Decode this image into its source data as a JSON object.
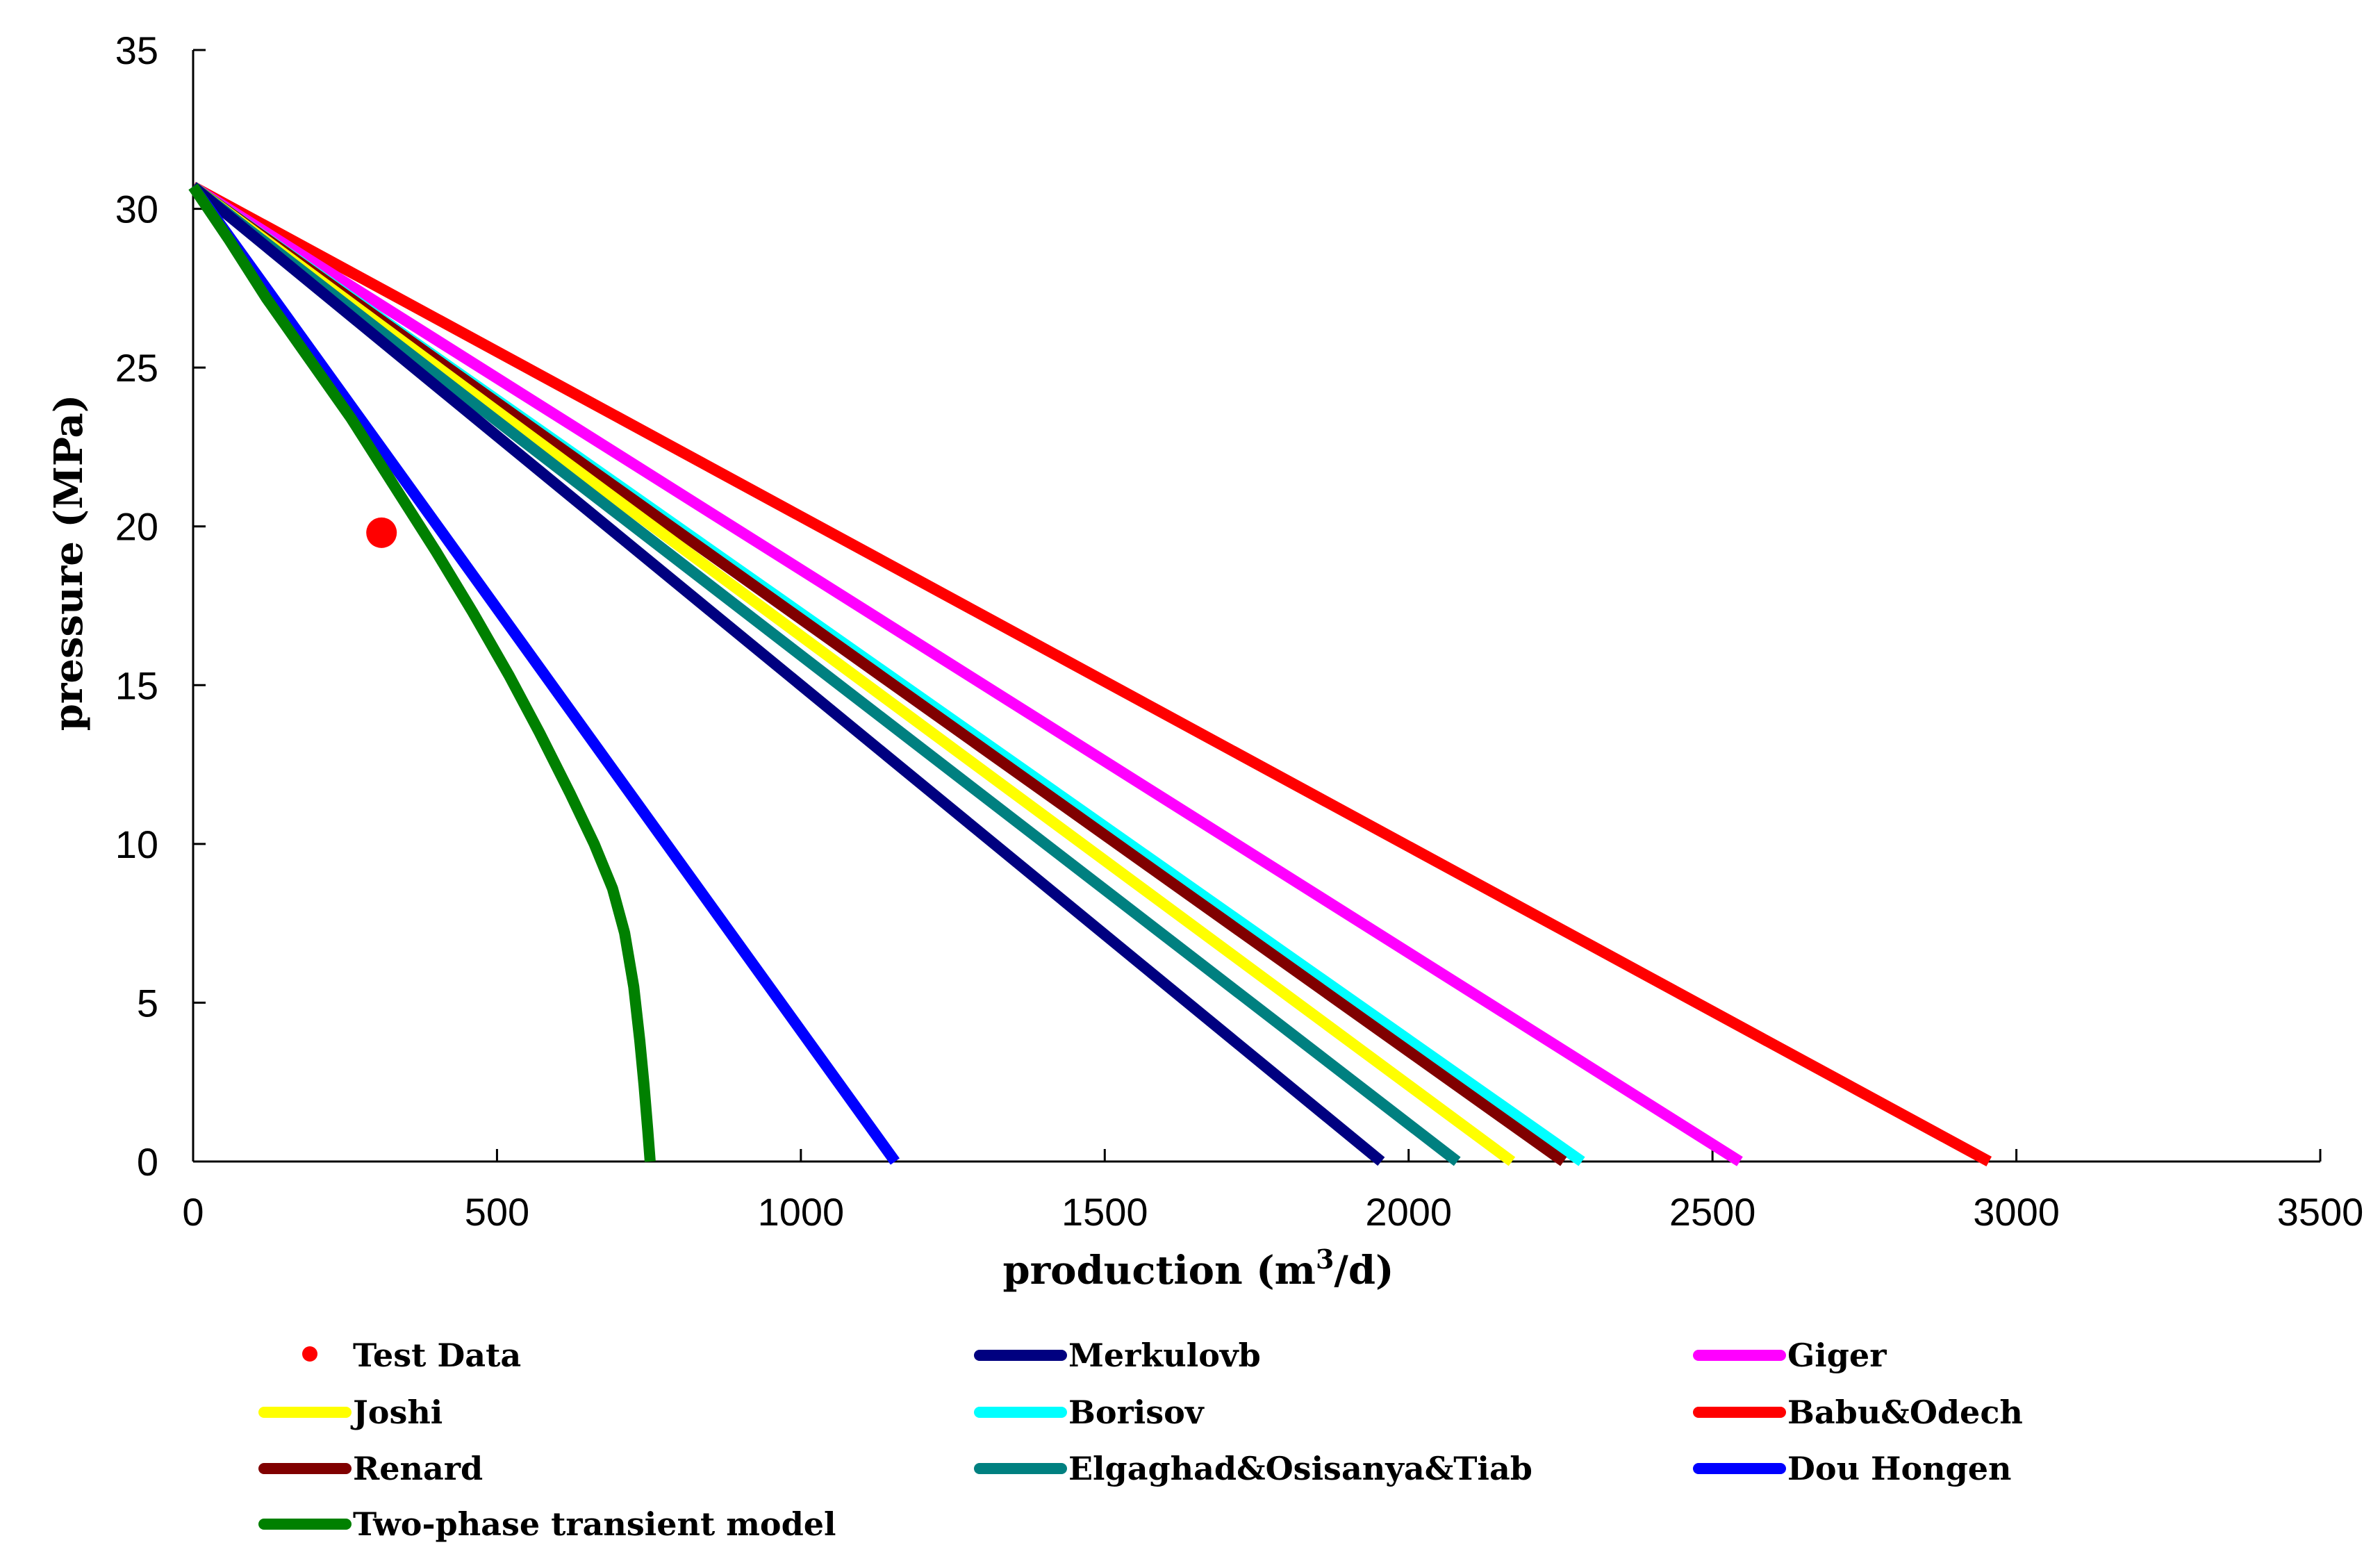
{
  "chart_data": {
    "type": "line",
    "title": "",
    "xlabel": "production (m3/d)",
    "ylabel": "pressure (MPa)",
    "xlim": [
      0,
      3500
    ],
    "ylim": [
      0,
      35
    ],
    "x_ticks": [
      0,
      500,
      1000,
      1500,
      2000,
      2500,
      3000,
      3500
    ],
    "y_ticks": [
      0,
      5,
      10,
      15,
      20,
      25,
      30,
      35
    ],
    "grid": false,
    "legend_position": "bottom",
    "series": [
      {
        "name": "Test Data",
        "kind": "scatter",
        "color": "#ff0000",
        "x": [
          310
        ],
        "y": [
          19.8
        ]
      },
      {
        "name": "Merkulovb",
        "kind": "line",
        "color": "#000080",
        "x": [
          0,
          1955
        ],
        "y": [
          30.7,
          0
        ]
      },
      {
        "name": "Giger",
        "kind": "line",
        "color": "#ff00ff",
        "x": [
          0,
          2545
        ],
        "y": [
          30.7,
          0
        ]
      },
      {
        "name": "Joshi",
        "kind": "line",
        "color": "#ffff00",
        "x": [
          0,
          2170
        ],
        "y": [
          30.7,
          0
        ]
      },
      {
        "name": "Borisov",
        "kind": "line",
        "color": "#00ffff",
        "x": [
          0,
          2285
        ],
        "y": [
          30.7,
          0
        ]
      },
      {
        "name": "Babu&Odech",
        "kind": "line",
        "color": "#ff0000",
        "x": [
          0,
          2955
        ],
        "y": [
          30.7,
          0
        ]
      },
      {
        "name": "Renard",
        "kind": "line",
        "color": "#800000",
        "x": [
          0,
          2255
        ],
        "y": [
          30.7,
          0
        ]
      },
      {
        "name": "Elgaghad&Osisanya&Tiab",
        "kind": "line",
        "color": "#008080",
        "x": [
          0,
          2080
        ],
        "y": [
          30.7,
          0
        ]
      },
      {
        "name": "Dou Hongen",
        "kind": "line",
        "color": "#0000ff",
        "x": [
          0,
          1155
        ],
        "y": [
          30.7,
          0
        ]
      },
      {
        "name": "Two-phase transient model",
        "kind": "line",
        "color": "#008000",
        "x": [
          0,
          60,
          120,
          190,
          260,
          330,
          400,
          460,
          520,
          570,
          620,
          660,
          690,
          710,
          725,
          735,
          742,
          748,
          752
        ],
        "y": [
          30.7,
          29.0,
          27.2,
          25.3,
          23.4,
          21.3,
          19.2,
          17.3,
          15.3,
          13.5,
          11.6,
          10.0,
          8.6,
          7.2,
          5.5,
          3.8,
          2.4,
          1.0,
          0
        ]
      }
    ]
  }
}
